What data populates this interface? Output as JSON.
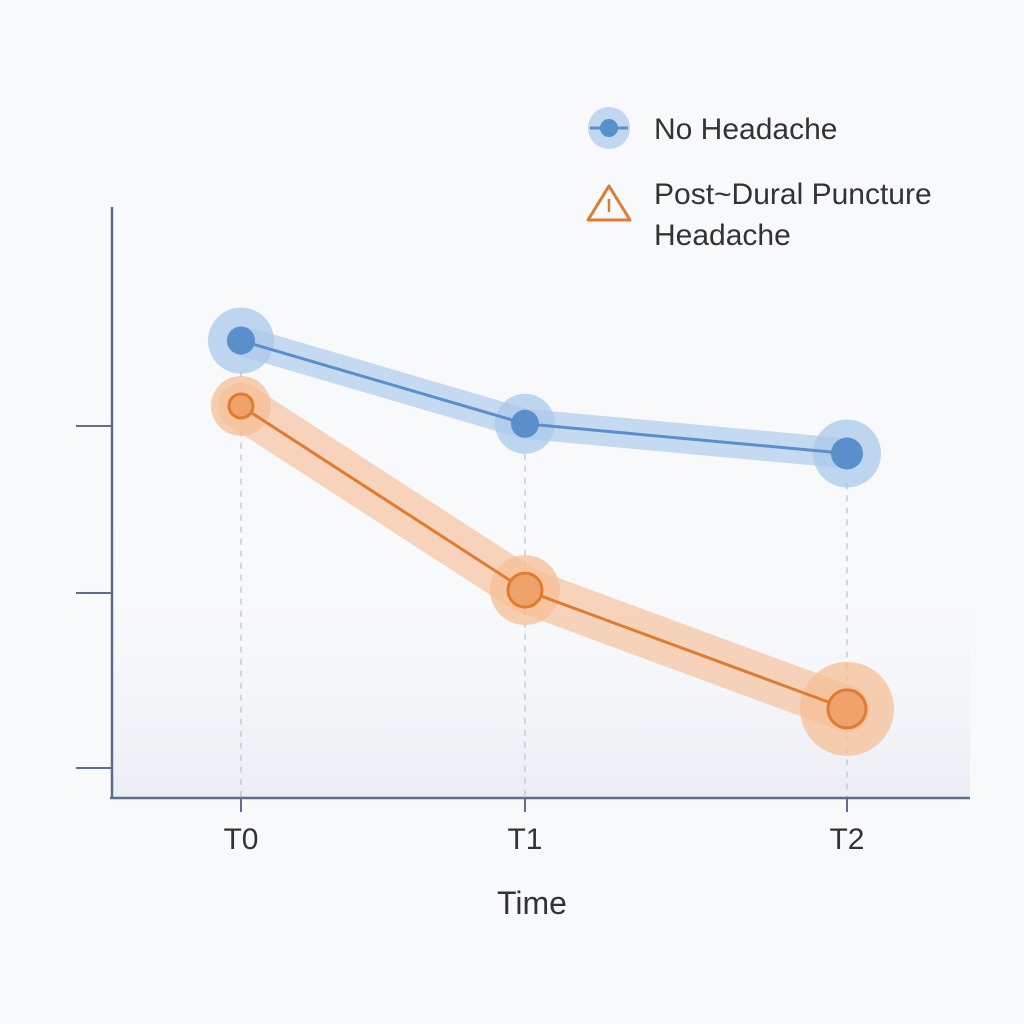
{
  "chart_data": {
    "type": "line",
    "categories": [
      "T0",
      "T1",
      "T2"
    ],
    "xlabel": "Time",
    "ylabel": "",
    "ylim": [
      0,
      100
    ],
    "grid": false,
    "legend_position": "top-right",
    "series": [
      {
        "name": "No Headache",
        "values": [
          77,
          63,
          58
        ],
        "color": "#5b8fcc",
        "halo_color": "#a9c8ea",
        "marker": "circle"
      },
      {
        "name_lines": [
          "Post~Dural Puncture",
          "Headache"
        ],
        "values": [
          66,
          35,
          15
        ],
        "color": "#e07b30",
        "halo_color": "#f5bf96",
        "marker": "circle",
        "legend_icon": "warning-triangle-icon"
      }
    ]
  }
}
